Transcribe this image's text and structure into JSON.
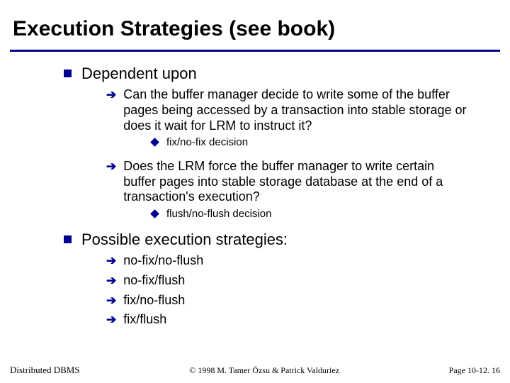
{
  "colors": {
    "accent": "#000090",
    "text": "#000000",
    "background": "#ffffff"
  },
  "title": "Execution Strategies (see book)",
  "bullets": {
    "l1_a": "Dependent upon",
    "l2_a": "Can the buffer manager decide to write some of the buffer pages being accessed by a transaction into stable storage or does it wait for LRM to instruct it?",
    "l3_a": "fix/no-fix decision",
    "l2_b": "Does the LRM force the buffer manager to write certain buffer pages into stable storage database at the end of a transaction's execution?",
    "l3_b": "flush/no-flush decision",
    "l1_b": "Possible execution strategies:",
    "l2_c": "no-fix/no-flush",
    "l2_d": "no-fix/flush",
    "l2_e": "fix/no-flush",
    "l2_f": "fix/flush"
  },
  "footer": {
    "left": "Distributed DBMS",
    "center": "© 1998 M. Tamer Özsu & Patrick Valduriez",
    "right": "Page 10-12. 16"
  }
}
